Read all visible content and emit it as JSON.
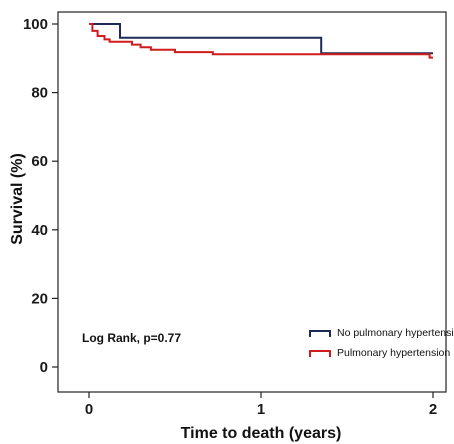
{
  "chart_data": {
    "type": "line",
    "subtype": "step",
    "xlabel": "Time to death (years)",
    "ylabel": "Survival (%)",
    "xlim": [
      0,
      2
    ],
    "ylim": [
      0,
      100
    ],
    "xticks": [
      "0",
      "1",
      "2"
    ],
    "yticks": [
      "0",
      "20",
      "40",
      "60",
      "80",
      "100"
    ],
    "grid": false,
    "legend": "bottom-right",
    "annotation": "Log Rank, p=0.77",
    "series": [
      {
        "name": "No pulmonary hypertension",
        "color": "#1f2a56",
        "points": [
          [
            0,
            100
          ],
          [
            0.18,
            100
          ],
          [
            0.18,
            96
          ],
          [
            1.35,
            96
          ],
          [
            1.35,
            91.5
          ],
          [
            2.0,
            91.5
          ]
        ]
      },
      {
        "name": "Pulmonary hypertension",
        "color": "#d01c1c",
        "points": [
          [
            0,
            100
          ],
          [
            0.02,
            100
          ],
          [
            0.02,
            98
          ],
          [
            0.05,
            98
          ],
          [
            0.05,
            96.5
          ],
          [
            0.09,
            96.5
          ],
          [
            0.09,
            95.5
          ],
          [
            0.12,
            95.5
          ],
          [
            0.12,
            94.8
          ],
          [
            0.25,
            94.8
          ],
          [
            0.25,
            94
          ],
          [
            0.3,
            94
          ],
          [
            0.3,
            93.2
          ],
          [
            0.36,
            93.2
          ],
          [
            0.36,
            92.5
          ],
          [
            0.5,
            92.5
          ],
          [
            0.5,
            91.8
          ],
          [
            0.72,
            91.8
          ],
          [
            0.72,
            91.2
          ],
          [
            1.98,
            91.2
          ],
          [
            1.98,
            90.2
          ],
          [
            2.0,
            90.2
          ]
        ]
      }
    ]
  }
}
